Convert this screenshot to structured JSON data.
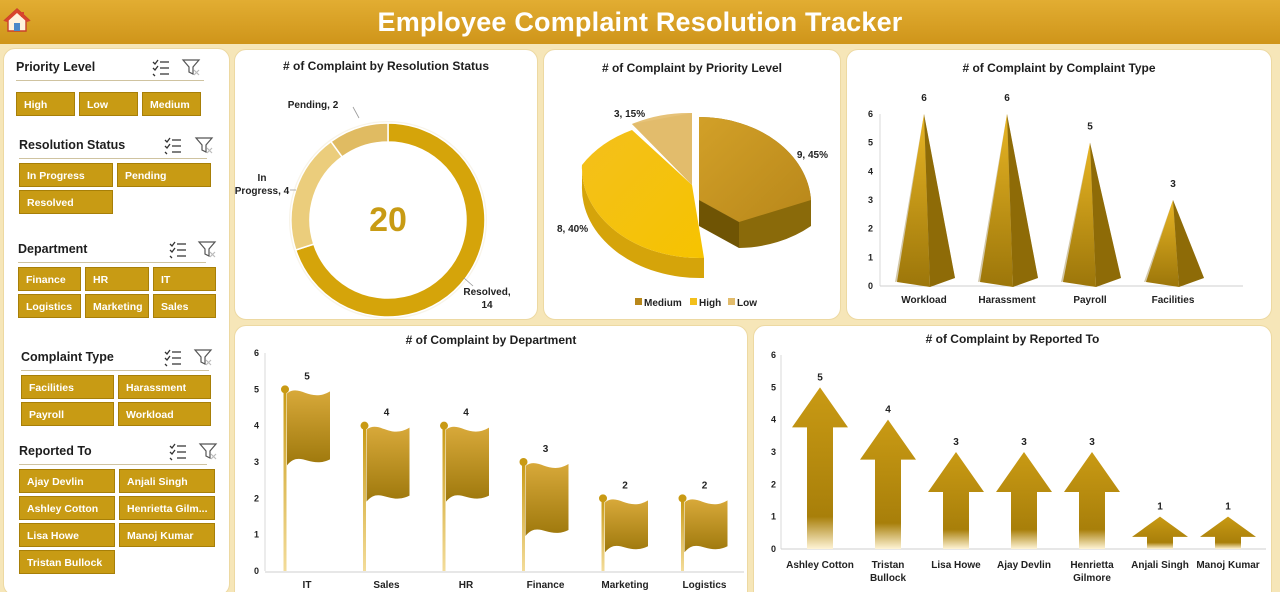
{
  "header": {
    "title": "Employee Complaint Resolution Tracker",
    "home_icon": "home-icon"
  },
  "colors": {
    "gold": "#c89b14",
    "gold_dark": "#a77f08",
    "header": "#d9a22a",
    "background": "#f6e6b8"
  },
  "slicers": {
    "priority": {
      "title": "Priority Level",
      "items": [
        "High",
        "Low",
        "Medium"
      ]
    },
    "status": {
      "title": "Resolution Status",
      "items": [
        "In Progress",
        "Pending",
        "Resolved"
      ]
    },
    "department": {
      "title": "Department",
      "items": [
        "Finance",
        "HR",
        "IT",
        "Logistics",
        "Marketing",
        "Sales"
      ]
    },
    "type": {
      "title": "Complaint Type",
      "items": [
        "Facilities",
        "Harassment",
        "Payroll",
        "Workload"
      ]
    },
    "reported": {
      "title": "Reported To",
      "items": [
        "Ajay Devlin",
        "Anjali Singh",
        "Ashley Cotton",
        "Henrietta Gilm...",
        "Lisa Howe",
        "Manoj Kumar",
        "Tristan Bullock"
      ]
    }
  },
  "chart_data": [
    {
      "type": "pie",
      "variant": "doughnut",
      "title": "# of  Complaint by Resolution Status",
      "center_total": "20",
      "slices": [
        {
          "label": "Resolved",
          "value": 14
        },
        {
          "label": "In Progress",
          "value": 4
        },
        {
          "label": "Pending",
          "value": 2
        }
      ],
      "data_labels": [
        "Pending, 2",
        "In",
        "Progress, 4",
        "Resolved,",
        "14"
      ]
    },
    {
      "type": "pie",
      "title": "# of  Complaint by Priority Level",
      "slices": [
        {
          "label": "Medium",
          "value": 9,
          "percent": 45
        },
        {
          "label": "High",
          "value": 8,
          "percent": 40
        },
        {
          "label": "Low",
          "value": 3,
          "percent": 15
        }
      ],
      "data_labels": [
        "9, 45%",
        "8, 40%",
        "3, 15%"
      ],
      "legend": [
        "Medium",
        "High",
        "Low"
      ],
      "legend_position": "bottom"
    },
    {
      "type": "bar",
      "variant": "pyramid",
      "title": "# of  Complaint by Complaint Type",
      "categories": [
        "Workload",
        "Harassment",
        "Payroll",
        "Facilities"
      ],
      "values": [
        6,
        6,
        5,
        3
      ],
      "ylim": [
        0,
        6
      ],
      "yticks": [
        "0",
        "1",
        "2",
        "3",
        "4",
        "5",
        "6"
      ]
    },
    {
      "type": "bar",
      "variant": "flag",
      "title": "# of  Complaint by Department",
      "categories": [
        "IT",
        "Sales",
        "HR",
        "Finance",
        "Marketing",
        "Logistics"
      ],
      "values": [
        5,
        4,
        4,
        3,
        2,
        2
      ],
      "ylim": [
        0,
        6
      ],
      "yticks": [
        "0",
        "1",
        "2",
        "3",
        "4",
        "5",
        "6"
      ]
    },
    {
      "type": "bar",
      "variant": "arrow",
      "title": "# of  Complaint by Reported To",
      "categories": [
        "Ashley Cotton",
        "Tristan Bullock",
        "Lisa Howe",
        "Ajay Devlin",
        "Henrietta Gilmore",
        "Anjali Singh",
        "Manoj Kumar"
      ],
      "category_lines": [
        [
          "Ashley Cotton"
        ],
        [
          "Tristan",
          "Bullock"
        ],
        [
          "Lisa Howe"
        ],
        [
          "Ajay Devlin"
        ],
        [
          "Henrietta",
          "Gilmore"
        ],
        [
          "Anjali Singh"
        ],
        [
          "Manoj Kumar"
        ]
      ],
      "values": [
        5,
        4,
        3,
        3,
        3,
        1,
        1
      ],
      "ylim": [
        0,
        6
      ],
      "yticks": [
        "0",
        "1",
        "2",
        "3",
        "4",
        "5",
        "6"
      ]
    }
  ]
}
